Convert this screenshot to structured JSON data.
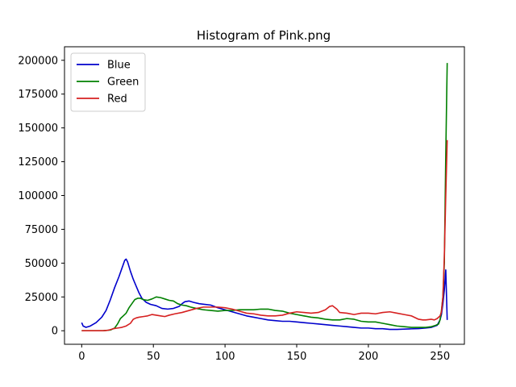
{
  "chart_data": {
    "type": "line",
    "title": "Histogram of Pink.png",
    "xlabel": "",
    "ylabel": "",
    "xlim": [
      -12,
      267
    ],
    "ylim": [
      -10000,
      210000
    ],
    "xticks": [
      0,
      50,
      100,
      150,
      200,
      250
    ],
    "yticks": [
      0,
      25000,
      50000,
      75000,
      100000,
      125000,
      150000,
      175000,
      200000
    ],
    "grid": false,
    "legend_position": "top-left",
    "series": [
      {
        "name": "Blue",
        "color": "#0000cc",
        "points": [
          [
            0,
            6000
          ],
          [
            1,
            3500
          ],
          [
            3,
            2500
          ],
          [
            6,
            3500
          ],
          [
            10,
            6000
          ],
          [
            14,
            10000
          ],
          [
            17,
            15000
          ],
          [
            20,
            23000
          ],
          [
            23,
            32000
          ],
          [
            26,
            40000
          ],
          [
            28,
            46000
          ],
          [
            30,
            52000
          ],
          [
            31,
            53000
          ],
          [
            32,
            51000
          ],
          [
            34,
            44000
          ],
          [
            36,
            38000
          ],
          [
            38,
            33000
          ],
          [
            40,
            28000
          ],
          [
            42,
            24000
          ],
          [
            45,
            21000
          ],
          [
            48,
            19500
          ],
          [
            52,
            18500
          ],
          [
            56,
            16500
          ],
          [
            60,
            16000
          ],
          [
            64,
            16500
          ],
          [
            68,
            18000
          ],
          [
            70,
            20000
          ],
          [
            72,
            21500
          ],
          [
            75,
            22000
          ],
          [
            78,
            21000
          ],
          [
            82,
            20000
          ],
          [
            86,
            19500
          ],
          [
            90,
            19000
          ],
          [
            95,
            17000
          ],
          [
            100,
            15500
          ],
          [
            105,
            14000
          ],
          [
            110,
            12500
          ],
          [
            115,
            11000
          ],
          [
            120,
            10000
          ],
          [
            125,
            9000
          ],
          [
            130,
            8000
          ],
          [
            135,
            7500
          ],
          [
            140,
            7000
          ],
          [
            145,
            7000
          ],
          [
            150,
            6500
          ],
          [
            155,
            6000
          ],
          [
            160,
            5500
          ],
          [
            165,
            5000
          ],
          [
            170,
            4500
          ],
          [
            175,
            4000
          ],
          [
            180,
            3500
          ],
          [
            185,
            3000
          ],
          [
            190,
            2500
          ],
          [
            195,
            2000
          ],
          [
            200,
            2000
          ],
          [
            205,
            1500
          ],
          [
            210,
            1500
          ],
          [
            215,
            1000
          ],
          [
            220,
            1000
          ],
          [
            225,
            1200
          ],
          [
            230,
            1400
          ],
          [
            235,
            1600
          ],
          [
            240,
            2000
          ],
          [
            244,
            2500
          ],
          [
            248,
            4000
          ],
          [
            250,
            8000
          ],
          [
            251,
            12000
          ],
          [
            252,
            20000
          ],
          [
            253,
            30000
          ],
          [
            254,
            45000
          ],
          [
            255,
            8000
          ]
        ]
      },
      {
        "name": "Green",
        "color": "#008000",
        "points": [
          [
            0,
            0
          ],
          [
            5,
            0
          ],
          [
            10,
            0
          ],
          [
            15,
            0
          ],
          [
            20,
            500
          ],
          [
            23,
            2000
          ],
          [
            25,
            5000
          ],
          [
            27,
            9000
          ],
          [
            29,
            11000
          ],
          [
            31,
            13000
          ],
          [
            33,
            17000
          ],
          [
            35,
            20000
          ],
          [
            37,
            23000
          ],
          [
            39,
            24000
          ],
          [
            41,
            24000
          ],
          [
            43,
            23000
          ],
          [
            46,
            22500
          ],
          [
            49,
            23500
          ],
          [
            52,
            25000
          ],
          [
            55,
            24500
          ],
          [
            58,
            23500
          ],
          [
            61,
            22500
          ],
          [
            64,
            22000
          ],
          [
            67,
            20000
          ],
          [
            70,
            19000
          ],
          [
            73,
            18500
          ],
          [
            76,
            17500
          ],
          [
            80,
            16500
          ],
          [
            85,
            15500
          ],
          [
            90,
            15000
          ],
          [
            95,
            14500
          ],
          [
            100,
            15000
          ],
          [
            105,
            15000
          ],
          [
            110,
            15500
          ],
          [
            115,
            15500
          ],
          [
            120,
            15500
          ],
          [
            125,
            16000
          ],
          [
            130,
            16000
          ],
          [
            135,
            15000
          ],
          [
            140,
            14500
          ],
          [
            145,
            13000
          ],
          [
            150,
            12000
          ],
          [
            155,
            11000
          ],
          [
            160,
            10000
          ],
          [
            165,
            9500
          ],
          [
            170,
            8500
          ],
          [
            175,
            8000
          ],
          [
            180,
            8000
          ],
          [
            185,
            9000
          ],
          [
            190,
            8500
          ],
          [
            195,
            7000
          ],
          [
            200,
            6500
          ],
          [
            205,
            6500
          ],
          [
            210,
            5500
          ],
          [
            215,
            4500
          ],
          [
            220,
            3500
          ],
          [
            225,
            3000
          ],
          [
            230,
            2500
          ],
          [
            235,
            2500
          ],
          [
            240,
            2500
          ],
          [
            244,
            3000
          ],
          [
            247,
            4000
          ],
          [
            249,
            5000
          ],
          [
            250,
            8000
          ],
          [
            251,
            15000
          ],
          [
            252,
            25000
          ],
          [
            253,
            50000
          ],
          [
            254,
            130000
          ],
          [
            255,
            198000
          ]
        ]
      },
      {
        "name": "Red",
        "color": "#d62020",
        "points": [
          [
            0,
            0
          ],
          [
            5,
            0
          ],
          [
            10,
            0
          ],
          [
            15,
            0
          ],
          [
            18,
            300
          ],
          [
            20,
            800
          ],
          [
            22,
            1500
          ],
          [
            25,
            2000
          ],
          [
            28,
            2500
          ],
          [
            31,
            3500
          ],
          [
            34,
            5500
          ],
          [
            36,
            8500
          ],
          [
            38,
            9500
          ],
          [
            40,
            10000
          ],
          [
            43,
            10500
          ],
          [
            46,
            11000
          ],
          [
            49,
            12000
          ],
          [
            52,
            11500
          ],
          [
            55,
            11000
          ],
          [
            58,
            10500
          ],
          [
            61,
            11500
          ],
          [
            65,
            12500
          ],
          [
            70,
            13500
          ],
          [
            75,
            15000
          ],
          [
            80,
            16500
          ],
          [
            85,
            17500
          ],
          [
            90,
            17500
          ],
          [
            95,
            17500
          ],
          [
            100,
            17000
          ],
          [
            105,
            16000
          ],
          [
            110,
            14500
          ],
          [
            115,
            13000
          ],
          [
            120,
            12500
          ],
          [
            125,
            11500
          ],
          [
            130,
            11000
          ],
          [
            135,
            11000
          ],
          [
            140,
            11500
          ],
          [
            145,
            13000
          ],
          [
            150,
            14000
          ],
          [
            155,
            13500
          ],
          [
            160,
            13000
          ],
          [
            165,
            13500
          ],
          [
            170,
            15500
          ],
          [
            173,
            18000
          ],
          [
            175,
            18500
          ],
          [
            178,
            16000
          ],
          [
            180,
            13500
          ],
          [
            185,
            13000
          ],
          [
            190,
            12000
          ],
          [
            195,
            13000
          ],
          [
            200,
            13000
          ],
          [
            205,
            12500
          ],
          [
            210,
            13500
          ],
          [
            215,
            14000
          ],
          [
            220,
            13000
          ],
          [
            225,
            12000
          ],
          [
            230,
            11000
          ],
          [
            235,
            8500
          ],
          [
            238,
            8000
          ],
          [
            240,
            8000
          ],
          [
            244,
            8500
          ],
          [
            246,
            8000
          ],
          [
            248,
            9000
          ],
          [
            250,
            11000
          ],
          [
            251,
            14000
          ],
          [
            252,
            25000
          ],
          [
            253,
            55000
          ],
          [
            254,
            100000
          ],
          [
            255,
            141000
          ]
        ]
      }
    ]
  }
}
